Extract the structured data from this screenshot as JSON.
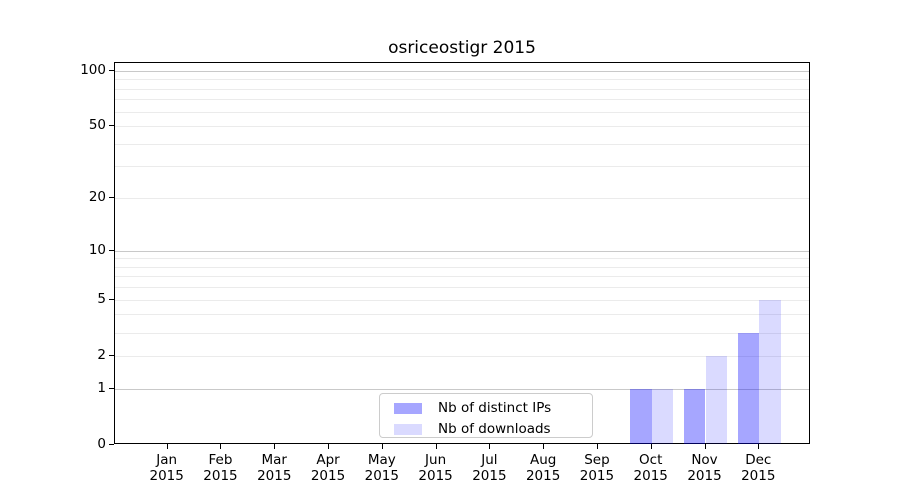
{
  "chart_data": {
    "type": "bar",
    "title": "osriceostigr 2015",
    "x_axis": {
      "categories": [
        "Jan",
        "Feb",
        "Mar",
        "Apr",
        "May",
        "Jun",
        "Jul",
        "Aug",
        "Sep",
        "Oct",
        "Nov",
        "Dec"
      ],
      "year": "2015"
    },
    "y_axis": {
      "scale": "log1p",
      "ylim": [
        0,
        110
      ],
      "labeled_ticks": [
        0,
        1,
        2,
        5,
        10,
        20,
        50,
        100
      ],
      "major_gridlines": [
        1,
        10,
        100
      ],
      "minor_gridlines": [
        2,
        3,
        4,
        5,
        6,
        7,
        8,
        9,
        20,
        30,
        40,
        50,
        60,
        70,
        80,
        90
      ]
    },
    "series": [
      {
        "name": "Nb of distinct IPs",
        "color": "rgba(0,0,255,0.35)",
        "values": [
          0,
          0,
          0,
          0,
          0,
          0,
          0,
          0,
          0,
          1,
          1,
          3
        ]
      },
      {
        "name": "Nb of downloads",
        "color": "rgba(0,0,255,0.145)",
        "values": [
          0,
          0,
          0,
          0,
          0,
          0,
          0,
          0,
          0,
          1,
          2,
          5
        ]
      }
    ],
    "legend": {
      "position": "bottom-center",
      "entries": [
        "Nb of distinct IPs",
        "Nb of downloads"
      ]
    },
    "grid": "horizontal-only"
  },
  "colors": {
    "major_grid": "#c9c9c9",
    "minor_grid": "#ebebeb",
    "axis": "#000000",
    "legend_border": "#cccccc",
    "background": "#ffffff"
  }
}
